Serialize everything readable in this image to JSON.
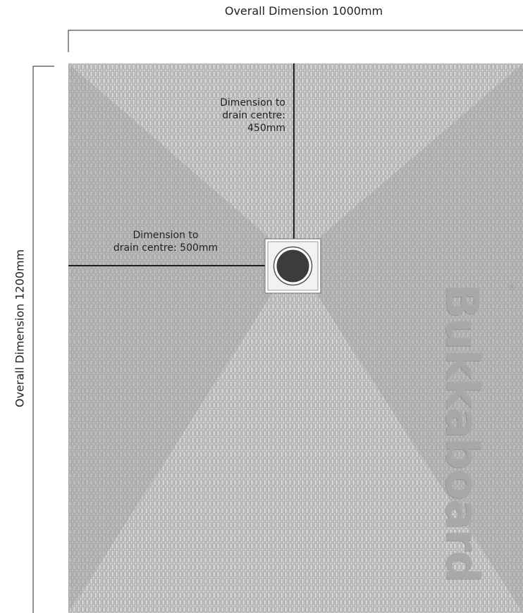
{
  "dimensions": {
    "overall_width_label": "Overall Dimension 1000mm",
    "overall_height_label": "Overall Dimension 1200mm",
    "drain_vertical_label": [
      "Dimension to",
      "drain centre:",
      "450mm"
    ],
    "drain_horizontal_label": [
      "Dimension to",
      "drain centre: 500mm"
    ]
  },
  "brand": {
    "name": "Bukkaboard",
    "registered_mark": "®"
  },
  "colors": {
    "board_light": "#d3d3d3",
    "board_dark": "#b9b9b9",
    "tile_line": "#9c9c9c",
    "drain_dark": "#3c3c3c",
    "line": "#231f20"
  }
}
